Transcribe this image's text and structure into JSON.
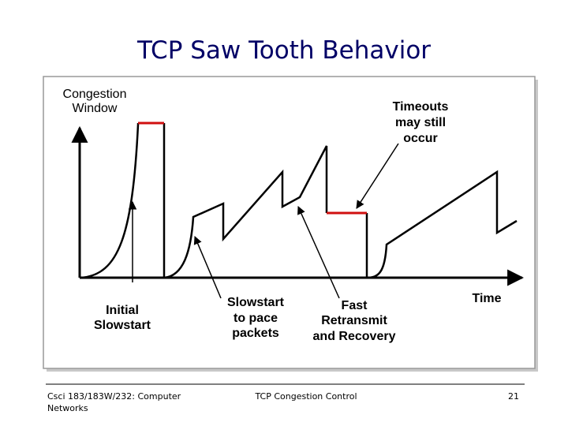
{
  "header": {
    "title": "TCP Saw Tooth Behavior"
  },
  "diagram": {
    "y_axis_label": [
      "Congestion",
      "Window"
    ],
    "x_axis_label": "Time",
    "annotations": [
      {
        "lines": [
          "Timeouts",
          "may still",
          "occur"
        ]
      },
      {
        "lines": [
          "Initial",
          "Slowstart"
        ]
      },
      {
        "lines": [
          "Slowstart",
          "to pace",
          "packets"
        ]
      },
      {
        "lines": [
          "Fast",
          "Retransmit",
          "and Recovery"
        ]
      }
    ]
  },
  "footer": {
    "left": [
      "Csci 183/183W/232: Computer",
      "Networks"
    ],
    "center": "TCP Congestion Control",
    "page": "21"
  }
}
